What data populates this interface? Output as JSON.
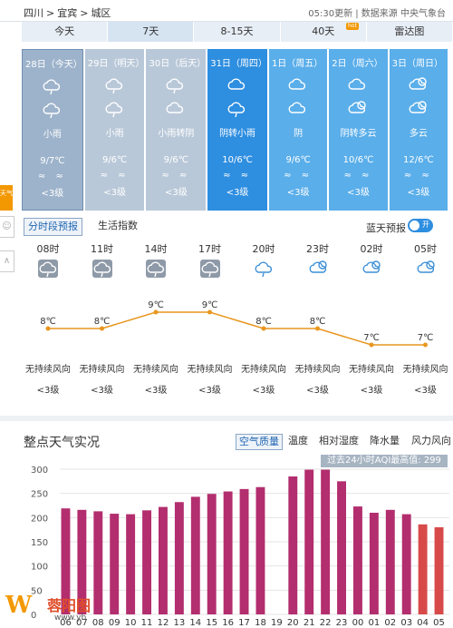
{
  "breadcrumb": [
    "四川",
    ">",
    "宜宾",
    ">",
    "城区"
  ],
  "update_text": "05:30更新 | 数据来源 中央气象台",
  "tabs": [
    {
      "label": "今天"
    },
    {
      "label": "7天"
    },
    {
      "label": "8-15天"
    },
    {
      "label": "40天",
      "badge": "hot"
    },
    {
      "label": "雷达图"
    }
  ],
  "days": [
    {
      "date": "28日（今天）",
      "weather": "小雨",
      "temp": "9/7℃",
      "wind": "≈ ≈",
      "level": "<3级"
    },
    {
      "date": "29日（明天）",
      "weather": "小雨",
      "temp": "9/6℃",
      "wind": "≈ ≈",
      "level": "<3级"
    },
    {
      "date": "30日（后天）",
      "weather": "小雨转阴",
      "temp": "9/6℃",
      "wind": "≈ ≈",
      "level": "<3级"
    },
    {
      "date": "31日（周四）",
      "weather": "阴转小雨",
      "temp": "10/6℃",
      "wind": "≈ ≈",
      "level": "<3级"
    },
    {
      "date": "1日（周五）",
      "weather": "阴",
      "temp": "9/6℃",
      "wind": "≈ ≈",
      "level": "<3级"
    },
    {
      "date": "2日（周六）",
      "weather": "阴转多云",
      "temp": "10/6℃",
      "wind": "≈ ≈",
      "level": "<3级"
    },
    {
      "date": "3日（周日）",
      "weather": "多云",
      "temp": "12/6℃",
      "wind": "≈ ≈",
      "level": "<3级"
    }
  ],
  "side": {
    "tab": "天气",
    "btn1": "☺",
    "btn2": "∧"
  },
  "subtabs": {
    "hourly": "分时段预报",
    "life": "生活指数"
  },
  "bluesky": {
    "label": "蓝天预报",
    "toggle": "开"
  },
  "hourly": [
    {
      "time": "08时",
      "temp": "8℃",
      "temp_value": 8,
      "wind": "无持续风向",
      "level": "<3级"
    },
    {
      "time": "11时",
      "temp": "8℃",
      "temp_value": 8,
      "wind": "无持续风向",
      "level": "<3级"
    },
    {
      "time": "14时",
      "temp": "9℃",
      "temp_value": 9,
      "wind": "无持续风向",
      "level": "<3级"
    },
    {
      "time": "17时",
      "temp": "9℃",
      "temp_value": 9,
      "wind": "无持续风向",
      "level": "<3级"
    },
    {
      "time": "20时",
      "temp": "8℃",
      "temp_value": 8,
      "wind": "无持续风向",
      "level": "<3级"
    },
    {
      "time": "23时",
      "temp": "8℃",
      "temp_value": 8,
      "wind": "无持续风向",
      "level": "<3级"
    },
    {
      "time": "02时",
      "temp": "7℃",
      "temp_value": 7,
      "wind": "无持续风向",
      "level": "<3级"
    },
    {
      "time": "05时",
      "temp": "7℃",
      "temp_value": 7,
      "wind": "无持续风向",
      "level": "<3级"
    }
  ],
  "live": {
    "title": "整点天气实况",
    "tabs": [
      "空气质量",
      "温度",
      "相对湿度",
      "降水量",
      "风力风向"
    ],
    "aqi_note": "过去24小时AQI最高值: 299"
  },
  "chart_data": {
    "type": "bar",
    "categories": [
      "06",
      "07",
      "08",
      "09",
      "10",
      "11",
      "12",
      "13",
      "14",
      "15",
      "16",
      "17",
      "18",
      "19",
      "20",
      "21",
      "22",
      "23",
      "00",
      "01",
      "02",
      "03",
      "04",
      "05"
    ],
    "values": [
      219,
      216,
      213,
      208,
      207,
      215,
      222,
      232,
      243,
      249,
      254,
      259,
      263,
      0,
      285,
      299,
      299,
      275,
      223,
      210,
      216,
      207,
      186,
      180
    ],
    "ylim": [
      0,
      300
    ],
    "yticks": [
      0,
      50,
      100,
      150,
      200,
      250,
      300
    ],
    "grid": true,
    "colors": {
      "bar": "#b32e6e",
      "bar_recent": "#d84a4a"
    }
  },
  "colors": {
    "accent": "#2e8ee0",
    "orange": "#f39800",
    "line": "#e8961e"
  },
  "logo": {
    "mark": "W",
    "name": "蓉阳图",
    "url": "www.yb"
  }
}
